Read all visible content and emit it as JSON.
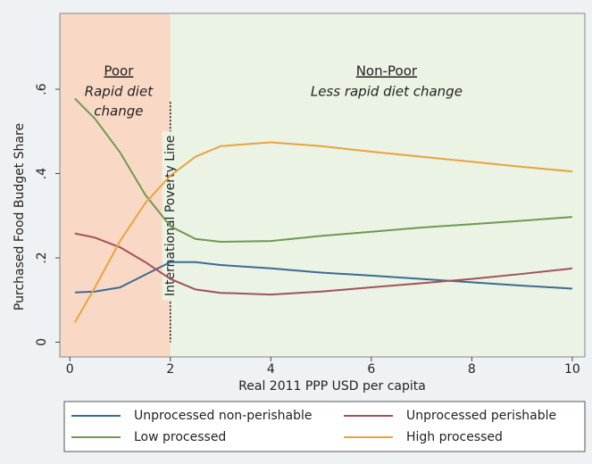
{
  "chart_data": {
    "type": "line",
    "xlabel": "Real 2011 PPP USD per capita",
    "ylabel": "Purchased Food Budget Share",
    "x": [
      0.1,
      0.5,
      1,
      1.5,
      2,
      2.5,
      3,
      4,
      5,
      6,
      7,
      8,
      9,
      10
    ],
    "series": [
      {
        "name": "Unprocessed non-perishable",
        "color": "#3b6b94",
        "values": [
          0.118,
          0.12,
          0.13,
          0.16,
          0.19,
          0.19,
          0.183,
          0.175,
          0.165,
          0.158,
          0.15,
          0.142,
          0.134,
          0.127
        ]
      },
      {
        "name": "Unprocessed perishable",
        "color": "#a0525a",
        "values": [
          0.258,
          0.248,
          0.225,
          0.19,
          0.15,
          0.125,
          0.117,
          0.113,
          0.12,
          0.13,
          0.14,
          0.15,
          0.162,
          0.175
        ]
      },
      {
        "name": "Low processed",
        "color": "#6e9a50",
        "values": [
          0.578,
          0.53,
          0.45,
          0.35,
          0.275,
          0.245,
          0.238,
          0.24,
          0.252,
          0.262,
          0.272,
          0.28,
          0.288,
          0.297
        ]
      },
      {
        "name": "High processed",
        "color": "#e8a33f",
        "values": [
          0.047,
          0.13,
          0.24,
          0.33,
          0.395,
          0.44,
          0.465,
          0.474,
          0.465,
          0.452,
          0.44,
          0.428,
          0.416,
          0.405
        ]
      }
    ],
    "xlim": [
      -0.2,
      10.25
    ],
    "ylim": [
      -0.035,
      0.78
    ],
    "xticks": [
      0,
      2,
      4,
      6,
      8,
      10
    ],
    "yticks": [
      0,
      {
        "value": 0.2,
        "label": ".2"
      },
      {
        "value": 0.4,
        "label": ".4"
      },
      {
        "value": 0.6,
        "label": ".6"
      }
    ],
    "poverty_line": 2,
    "poverty_line_label": "International Poverty Line",
    "regions": [
      {
        "title": "Poor",
        "subtitle": [
          "Rapid diet",
          "change"
        ],
        "color": "#f9d9c6"
      },
      {
        "title": "Non-Poor",
        "subtitle": [
          "Less rapid diet change"
        ],
        "color": "#eaf3e4"
      }
    ]
  }
}
